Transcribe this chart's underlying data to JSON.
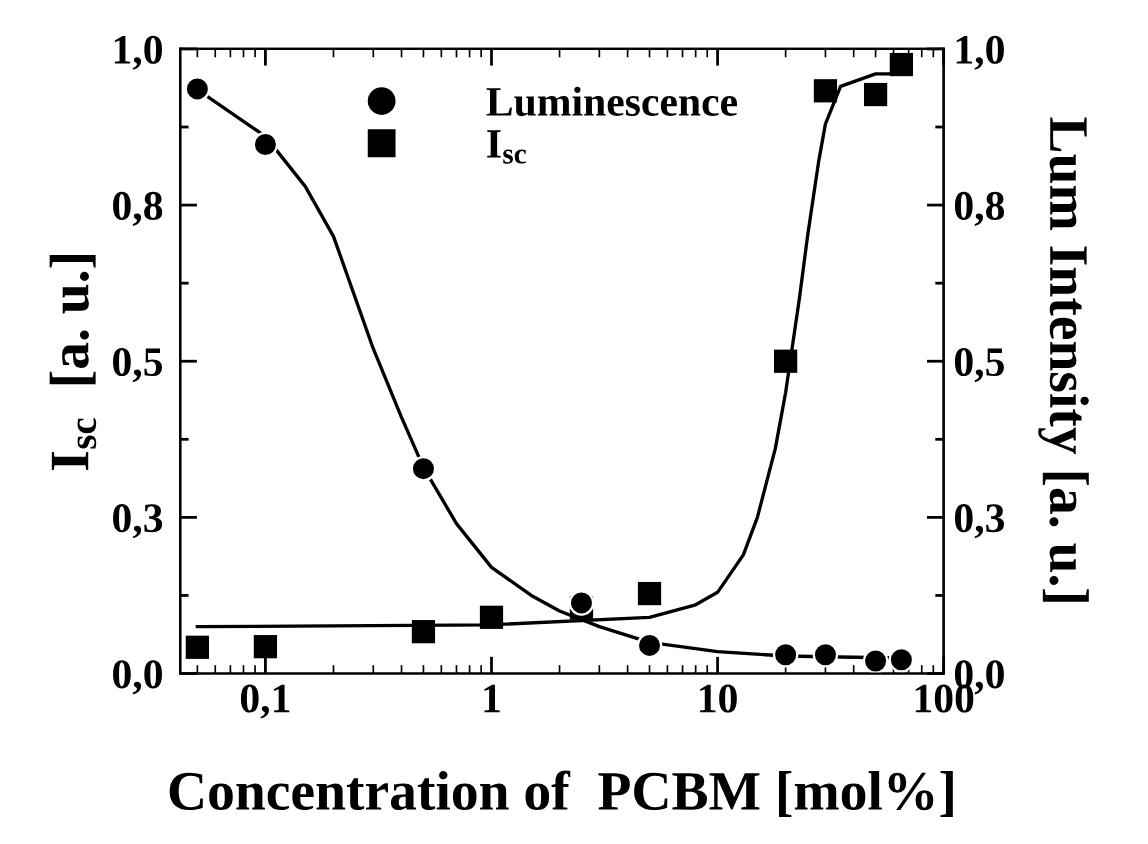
{
  "chart_data": {
    "type": "scatter",
    "xlabel": "Concentration of  PCBM [mol%]",
    "ylabel": "I$_{sc}$  [a. u.]",
    "y2label": "Lum Intensity [a. u.]",
    "log": "x",
    "xlim": [
      0.042,
      100
    ],
    "xticks": [
      {
        "value": 0.1,
        "label": "0,1"
      },
      1,
      10,
      100
    ],
    "ylim": [
      0,
      1
    ],
    "yticks": [
      {
        "value": 0,
        "label": "0,0"
      },
      {
        "value": 0.125,
        "label": null
      },
      {
        "value": 0.25,
        "label": "0,3"
      },
      {
        "value": 0.375,
        "label": null
      },
      {
        "value": 0.5,
        "label": "0,5"
      },
      {
        "value": 0.625,
        "label": null
      },
      {
        "value": 0.75,
        "label": "0,8"
      },
      {
        "value": 0.875,
        "label": null
      },
      {
        "value": 1,
        "label": "1,0"
      }
    ],
    "y2lim": [
      0,
      1
    ],
    "y2ticks": [
      {
        "value": 0,
        "label": "0,0"
      },
      {
        "value": 0.125,
        "label": null
      },
      {
        "value": 0.25,
        "label": "0,3"
      },
      {
        "value": 0.375,
        "label": null
      },
      {
        "value": 0.5,
        "label": "0,5"
      },
      {
        "value": 0.625,
        "label": null
      },
      {
        "value": 0.75,
        "label": "0,8"
      },
      {
        "value": 0.875,
        "label": null
      },
      {
        "value": 1,
        "label": "1,0"
      }
    ],
    "legend": "top",
    "grid": false,
    "series": [
      {
        "name": "Luminescence",
        "marker": "circle",
        "color": "#000000",
        "x": [
          0.05,
          0.1,
          0.5,
          2.5,
          5,
          20,
          30,
          50,
          65
        ],
        "values": [
          0.936,
          0.847,
          0.328,
          0.113,
          0.045,
          0.03,
          0.03,
          0.02,
          0.022
        ]
      },
      {
        "name": "I$_{sc}$",
        "marker": "square",
        "color": "#000000",
        "x": [
          0.05,
          0.1,
          0.5,
          1,
          2.5,
          5,
          20,
          30,
          50,
          65
        ],
        "values": [
          0.042,
          0.043,
          0.067,
          0.09,
          0.105,
          0.128,
          0.5,
          0.933,
          0.927,
          0.975
        ]
      },
      {
        "type": "line",
        "marker": "none",
        "line_style": "solid",
        "color": "#000000",
        "x": [
          0.05,
          0.1,
          0.15,
          0.2,
          0.3,
          0.4,
          0.5,
          0.7,
          1,
          1.5,
          2,
          3,
          5,
          10,
          20,
          40,
          65
        ],
        "values": [
          0.935,
          0.86,
          0.78,
          0.7,
          0.52,
          0.41,
          0.33,
          0.24,
          0.17,
          0.125,
          0.1,
          0.075,
          0.05,
          0.035,
          0.028,
          0.026,
          0.025
        ]
      },
      {
        "type": "line",
        "marker": "none",
        "line_style": "solid",
        "color": "#000000",
        "x": [
          0.05,
          1,
          5,
          8,
          10,
          13,
          15,
          18,
          20,
          23,
          25,
          28,
          30,
          35,
          50,
          65
        ],
        "values": [
          0.075,
          0.078,
          0.09,
          0.11,
          0.13,
          0.19,
          0.25,
          0.36,
          0.45,
          0.6,
          0.7,
          0.82,
          0.88,
          0.94,
          0.96,
          0.96
        ]
      }
    ]
  }
}
